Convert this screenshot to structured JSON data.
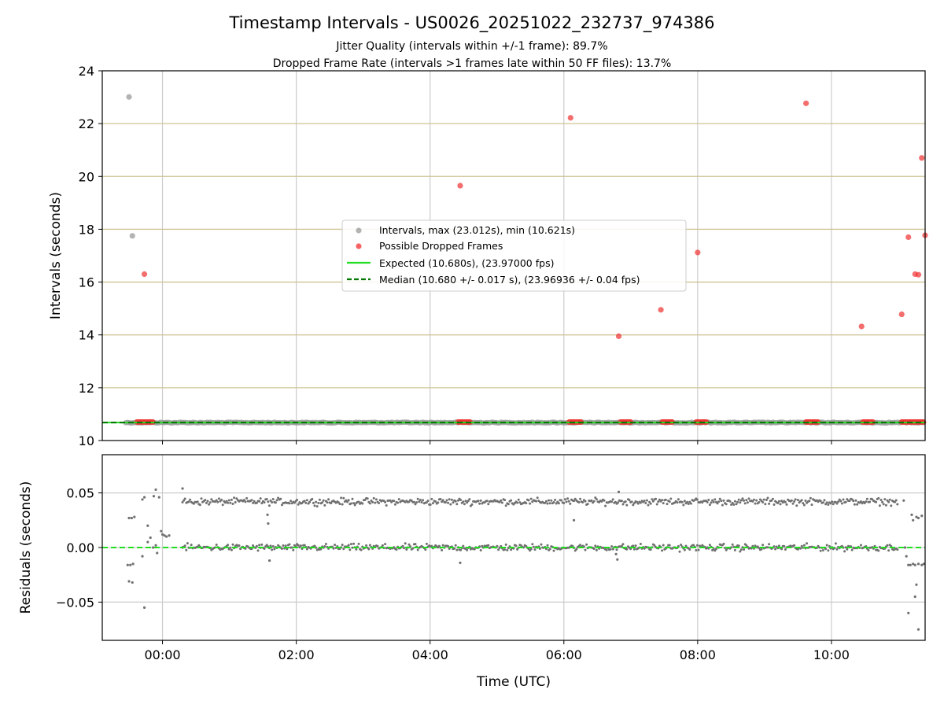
{
  "chart_data": [
    {
      "type": "scatter",
      "title": "Timestamp Intervals - US0026_20251022_232737_974386",
      "subtitles": [
        "Jitter Quality (intervals within +/-1 frame): 89.7%",
        "Dropped Frame Rate (intervals >1 frames late within 50 FF files): 13.7%"
      ],
      "ylabel": "Intervals (seconds)",
      "xlabel": "",
      "x_unit": "hours since 00:00 UTC",
      "xlim": [
        -0.9,
        11.4
      ],
      "ylim": [
        10,
        24
      ],
      "yticks": [
        10,
        12,
        14,
        16,
        18,
        20,
        22,
        24
      ],
      "ytick_labels": [
        "10",
        "12",
        "14",
        "16",
        "18",
        "20",
        "22",
        "24"
      ],
      "horizontal_gridlines": [
        12,
        14,
        16,
        18,
        20,
        22
      ],
      "legend_position": "center",
      "legend": [
        "Intervals, max (23.012s), min (10.621s)",
        "Possible Dropped Frames",
        "Expected (10.680s), (23.97000 fps)",
        "Median (10.680 +/- 0.017 s), (23.96936 +/- 0.04 fps)"
      ],
      "series": [
        {
          "name": "Intervals, max (23.012s), min (10.621s)",
          "color": "#999999",
          "points": [
            [
              -0.5,
              23.01
            ],
            [
              -0.45,
              17.75
            ]
          ],
          "baseline": {
            "x_start": -0.55,
            "x_end": 11.4,
            "y": 10.68
          }
        },
        {
          "name": "Possible Dropped Frames",
          "color": "#f03030",
          "points": [
            [
              -0.27,
              16.3
            ],
            [
              4.45,
              19.65
            ],
            [
              6.1,
              22.22
            ],
            [
              6.82,
              13.95
            ],
            [
              7.45,
              14.95
            ],
            [
              8.0,
              17.12
            ],
            [
              9.62,
              22.77
            ],
            [
              10.45,
              14.32
            ],
            [
              11.05,
              14.78
            ],
            [
              11.15,
              17.7
            ],
            [
              11.25,
              16.3
            ],
            [
              11.3,
              16.28
            ],
            [
              11.35,
              20.7
            ],
            [
              11.4,
              17.77
            ]
          ],
          "clusters": [
            [
              -0.38,
              -0.12
            ],
            [
              4.42,
              4.6
            ],
            [
              6.08,
              6.28
            ],
            [
              6.85,
              7.02
            ],
            [
              7.47,
              7.62
            ],
            [
              7.98,
              8.15
            ],
            [
              9.62,
              9.8
            ],
            [
              10.47,
              10.63
            ],
            [
              11.05,
              11.4
            ]
          ],
          "cluster_y": 10.7
        },
        {
          "name": "Expected (10.680s), (23.97000 fps)",
          "color": "#22dd22",
          "style": "solid",
          "y": 10.68
        },
        {
          "name": "Median (10.680 +/- 0.017 s), (23.96936 +/- 0.04 fps)",
          "color": "#007700",
          "style": "dashed",
          "y": 10.68
        }
      ]
    },
    {
      "type": "scatter",
      "ylabel": "Residuals (seconds)",
      "xlabel": "Time (UTC)",
      "xlim": [
        -0.9,
        11.4
      ],
      "ylim": [
        -0.085,
        0.085
      ],
      "yticks": [
        -0.05,
        0.0,
        0.05
      ],
      "ytick_labels": [
        "−0.05",
        "0.00",
        "0.05"
      ],
      "xticks": [
        0,
        2,
        4,
        6,
        8,
        10
      ],
      "xtick_labels": [
        "00:00",
        "02:00",
        "04:00",
        "06:00",
        "08:00",
        "10:00"
      ],
      "series": [
        {
          "name": "Residuals",
          "color": "#707070",
          "bands": [
            {
              "x_start": 0.3,
              "x_end": 11.0,
              "y": 0.042,
              "spread": 0.003
            },
            {
              "x_start": 0.3,
              "x_end": 11.0,
              "y": 0.0,
              "spread": 0.003
            }
          ],
          "outliers": [
            [
              -0.5,
              0.027
            ],
            [
              -0.46,
              0.027
            ],
            [
              -0.42,
              0.028
            ],
            [
              -0.52,
              -0.016
            ],
            [
              -0.48,
              -0.016
            ],
            [
              -0.44,
              -0.015
            ],
            [
              -0.5,
              -0.031
            ],
            [
              -0.45,
              -0.032
            ],
            [
              -0.3,
              0.044
            ],
            [
              -0.27,
              0.046
            ],
            [
              -0.22,
              0.02
            ],
            [
              -0.18,
              0.009
            ],
            [
              -0.13,
              0.047
            ],
            [
              -0.1,
              0.053
            ],
            [
              -0.05,
              0.046
            ],
            [
              -0.02,
              0.015
            ],
            [
              0.0,
              0.012
            ],
            [
              0.03,
              0.011
            ],
            [
              0.06,
              0.01
            ],
            [
              0.1,
              0.011
            ],
            [
              -0.14,
              0.0
            ],
            [
              -0.1,
              0.002
            ],
            [
              -0.08,
              -0.005
            ],
            [
              -0.27,
              -0.055
            ],
            [
              -0.3,
              -0.008
            ],
            [
              -0.22,
              0.005
            ],
            [
              0.3,
              0.054
            ],
            [
              0.3,
              0.0
            ],
            [
              1.57,
              0.03
            ],
            [
              1.6,
              -0.012
            ],
            [
              1.58,
              0.022
            ],
            [
              4.45,
              -0.014
            ],
            [
              6.15,
              0.025
            ],
            [
              6.8,
              -0.011
            ],
            [
              6.82,
              0.051
            ],
            [
              6.78,
              -0.006
            ],
            [
              11.08,
              0.043
            ],
            [
              11.1,
              0.0
            ],
            [
              11.15,
              -0.06
            ],
            [
              11.2,
              0.03
            ],
            [
              11.22,
              0.025
            ],
            [
              11.27,
              0.028
            ],
            [
              11.3,
              0.027
            ],
            [
              11.35,
              0.029
            ],
            [
              11.15,
              -0.016
            ],
            [
              11.18,
              -0.016
            ],
            [
              11.22,
              -0.015
            ],
            [
              11.25,
              -0.016
            ],
            [
              11.3,
              -0.015
            ],
            [
              11.35,
              -0.016
            ],
            [
              11.38,
              -0.015
            ],
            [
              11.25,
              -0.045
            ],
            [
              11.27,
              -0.034
            ],
            [
              11.3,
              -0.075
            ],
            [
              11.12,
              -0.008
            ]
          ]
        },
        {
          "name": "Zero line",
          "color": "#22dd22",
          "style": "dashed",
          "y": 0.0
        }
      ]
    }
  ]
}
